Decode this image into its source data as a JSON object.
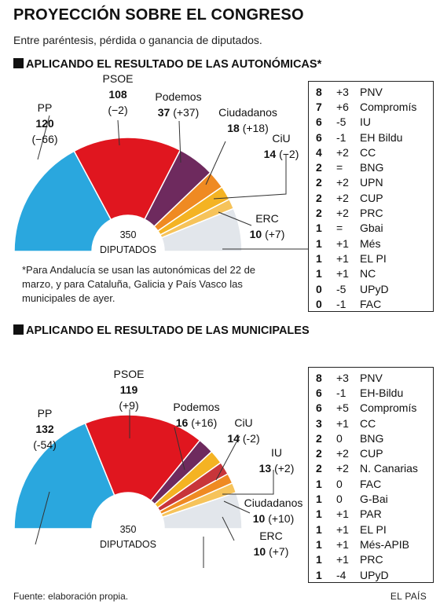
{
  "title": "PROYECCIÓN SOBRE EL CONGRESO",
  "subtitle": "Entre paréntesis, pérdida o ganancia de diputados.",
  "center_label": {
    "seats": "350",
    "text": "DIPUTADOS"
  },
  "note": "*Para Andalucía se usan las autonómicas del 22 de marzo, y para Cataluña, Galicia y País Vasco las municipales de ayer.",
  "footer": {
    "source": "Fuente: elaboración propia.",
    "brand": "EL PAÍS"
  },
  "colors": {
    "PP": "#2aa7de",
    "PSOE": "#e0161f",
    "Podemos": "#6e2a5e",
    "Ciudadanos": "#ef8a22",
    "CiU": "#f4b323",
    "ERC": "#f6c35a",
    "IU": "#c8353a",
    "Others": "#e2e6eb"
  },
  "chart_data": [
    {
      "type": "pie",
      "variant": "parliament-hemicycle",
      "heading": "APLICANDO EL RESULTADO DE LAS AUTONÓMICAS*",
      "total_seats": 350,
      "main_parties": [
        {
          "name": "PP",
          "seats": "120",
          "change": "(−66)",
          "value": 120,
          "color": "#2aa7de"
        },
        {
          "name": "PSOE",
          "seats": "108",
          "change": "(−2)",
          "value": 108,
          "color": "#e0161f"
        },
        {
          "name": "Podemos",
          "seats": "37",
          "change": "(+37)",
          "value": 37,
          "color": "#6e2a5e"
        },
        {
          "name": "Ciudadanos",
          "seats": "18",
          "change": "(+18)",
          "value": 18,
          "color": "#ef8a22"
        },
        {
          "name": "CiU",
          "seats": "14",
          "change": "(−2)",
          "value": 14,
          "color": "#f4b323"
        },
        {
          "name": "ERC",
          "seats": "10",
          "change": "(+7)",
          "value": 10,
          "color": "#f6c35a"
        }
      ],
      "others": {
        "value": 43,
        "color": "#e2e6eb"
      },
      "small_parties": [
        {
          "seats": "8",
          "change": "+3",
          "name": "PNV"
        },
        {
          "seats": "7",
          "change": "+6",
          "name": "Compromís"
        },
        {
          "seats": "6",
          "change": "-5",
          "name": "IU"
        },
        {
          "seats": "6",
          "change": "-1",
          "name": "EH Bildu"
        },
        {
          "seats": "4",
          "change": "+2",
          "name": "CC"
        },
        {
          "seats": "2",
          "change": "=",
          "name": "BNG"
        },
        {
          "seats": "2",
          "change": "+2",
          "name": "UPN"
        },
        {
          "seats": "2",
          "change": "+2",
          "name": "CUP"
        },
        {
          "seats": "2",
          "change": "+2",
          "name": "PRC"
        },
        {
          "seats": "1",
          "change": "=",
          "name": "Gbai"
        },
        {
          "seats": "1",
          "change": "+1",
          "name": "Més"
        },
        {
          "seats": "1",
          "change": "+1",
          "name": "EL PI"
        },
        {
          "seats": "1",
          "change": "+1",
          "name": "NC"
        },
        {
          "seats": "0",
          "change": "-5",
          "name": "UPyD"
        },
        {
          "seats": "0",
          "change": "-1",
          "name": "FAC"
        }
      ]
    },
    {
      "type": "pie",
      "variant": "parliament-hemicycle",
      "heading": "APLICANDO EL RESULTADO DE LAS MUNICIPALES",
      "total_seats": 350,
      "main_parties": [
        {
          "name": "PP",
          "seats": "132",
          "change": "(-54)",
          "value": 132,
          "color": "#2aa7de"
        },
        {
          "name": "PSOE",
          "seats": "119",
          "change": "(+9)",
          "value": 119,
          "color": "#e0161f"
        },
        {
          "name": "Podemos",
          "seats": "16",
          "change": "(+16)",
          "value": 16,
          "color": "#6e2a5e"
        },
        {
          "name": "CiU",
          "seats": "14",
          "change": "(-2)",
          "value": 14,
          "color": "#f4b323"
        },
        {
          "name": "IU",
          "seats": "13",
          "change": "(+2)",
          "value": 13,
          "color": "#c8353a"
        },
        {
          "name": "Ciudadanos",
          "seats": "10",
          "change": "(+10)",
          "value": 10,
          "color": "#ef8a22"
        },
        {
          "name": "ERC",
          "seats": "10",
          "change": "(+7)",
          "value": 10,
          "color": "#f6c35a"
        }
      ],
      "others": {
        "value": 36,
        "color": "#e2e6eb"
      },
      "small_parties": [
        {
          "seats": "8",
          "change": "+3",
          "name": "PNV"
        },
        {
          "seats": "6",
          "change": "-1",
          "name": "EH-Bildu"
        },
        {
          "seats": "6",
          "change": "+5",
          "name": "Compromís"
        },
        {
          "seats": "3",
          "change": "+1",
          "name": "CC"
        },
        {
          "seats": "2",
          "change": "0",
          "name": "BNG"
        },
        {
          "seats": "2",
          "change": "+2",
          "name": "CUP"
        },
        {
          "seats": "2",
          "change": "+2",
          "name": "N. Canarias"
        },
        {
          "seats": "1",
          "change": "0",
          "name": "FAC"
        },
        {
          "seats": "1",
          "change": "0",
          "name": "G-Bai"
        },
        {
          "seats": "1",
          "change": "+1",
          "name": "PAR"
        },
        {
          "seats": "1",
          "change": "+1",
          "name": "EL PI"
        },
        {
          "seats": "1",
          "change": "+1",
          "name": "Més-APIB"
        },
        {
          "seats": "1",
          "change": "+1",
          "name": "PRC"
        },
        {
          "seats": "1",
          "change": "-4",
          "name": "UPyD"
        }
      ]
    }
  ]
}
